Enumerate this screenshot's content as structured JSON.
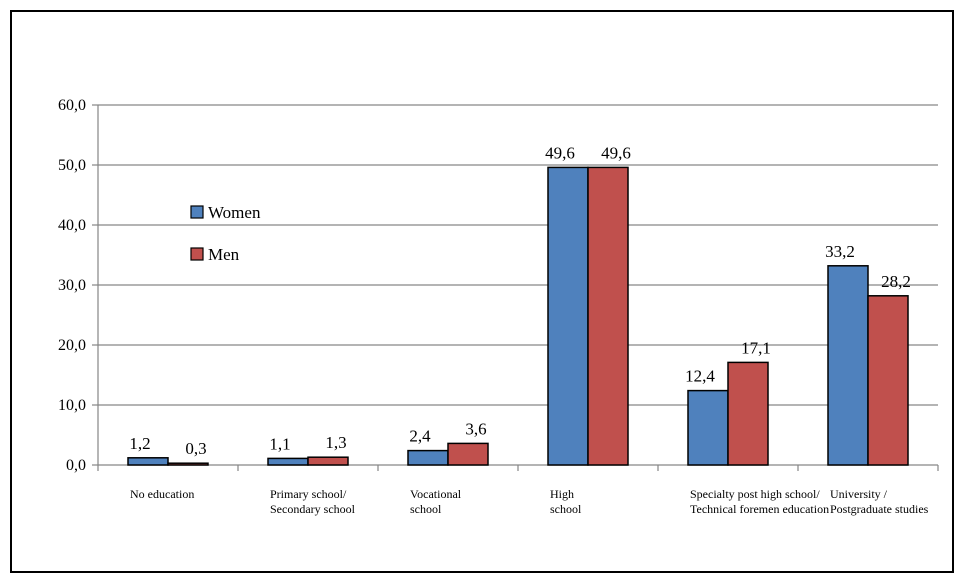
{
  "chart_data": {
    "type": "bar",
    "categories": [
      [
        "No education"
      ],
      [
        "Primary school/",
        "Secondary school"
      ],
      [
        "Vocational",
        "school"
      ],
      [
        "High",
        "school"
      ],
      [
        "Specialty post high school/",
        "Technical foremen education"
      ],
      [
        "University /",
        "Postgraduate studies"
      ]
    ],
    "series": [
      {
        "name": "Women",
        "color": "#4f81bd",
        "values": [
          1.2,
          1.1,
          2.4,
          49.6,
          12.4,
          33.2
        ],
        "labels": [
          "1,2",
          "1,1",
          "2,4",
          "49,6",
          "12,4",
          "33,2"
        ]
      },
      {
        "name": "Men",
        "color": "#c0504d",
        "values": [
          0.3,
          1.3,
          3.6,
          49.6,
          17.1,
          28.2
        ],
        "labels": [
          "0,3",
          "1,3",
          "3,6",
          "49,6",
          "17,1",
          "28,2"
        ]
      }
    ],
    "ylim": [
      0,
      60
    ],
    "yticks": [
      0,
      10,
      20,
      30,
      40,
      50,
      60
    ],
    "ytick_labels": [
      "0,0",
      "10,0",
      "20,0",
      "30,0",
      "40,0",
      "50,0",
      "60,0"
    ],
    "grid": true,
    "legend_position": "upper-left",
    "xlabel": "",
    "ylabel": "",
    "title": ""
  }
}
